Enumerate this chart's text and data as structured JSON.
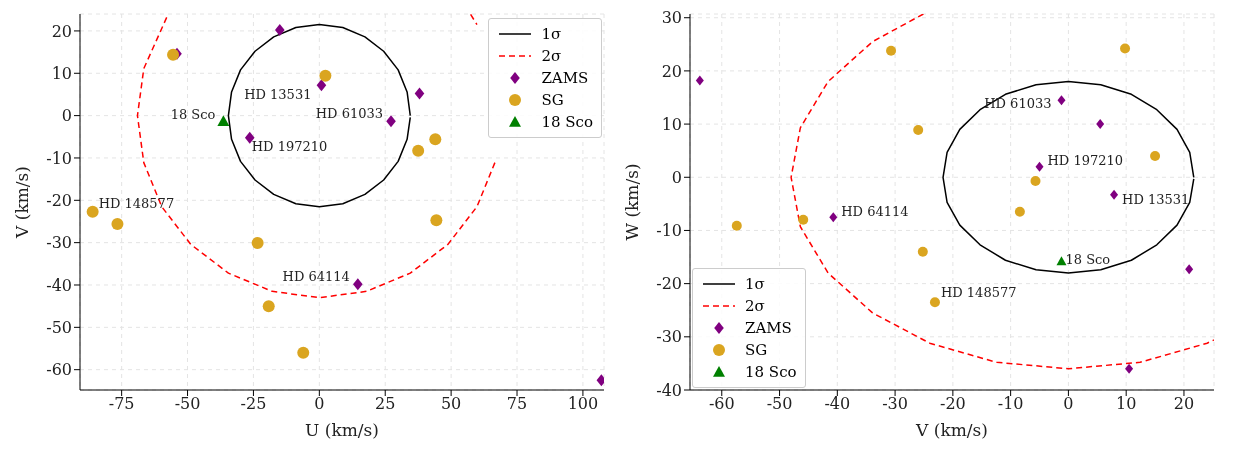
{
  "chart_data": [
    {
      "type": "scatter",
      "xlabel": "U (km/s)",
      "ylabel": "V (km/s)",
      "xlim": [
        -90.8,
        108
      ],
      "ylim": [
        -64.8,
        24
      ],
      "xticks": [
        -75,
        -50,
        -25,
        0,
        25,
        50,
        75,
        100
      ],
      "yticks": [
        -60,
        -50,
        -40,
        -30,
        -20,
        -10,
        0,
        10,
        20
      ],
      "grid": true,
      "legend": "top right",
      "series": [
        {
          "name": "1σ",
          "type": "line",
          "line_style": "solid",
          "marker": "none",
          "color": "#000000",
          "x": [
            34.5,
            33.3,
            29.9,
            24.4,
            17.3,
            8.9,
            0,
            -8.9,
            -17.3,
            -24.4,
            -29.9,
            -33.3,
            -34.5,
            -33.3,
            -29.9,
            -24.4,
            -17.3,
            -8.9,
            0,
            8.9,
            17.3,
            24.4,
            29.9,
            33.3,
            34.5
          ],
          "values": [
            0,
            5.6,
            10.8,
            15.2,
            18.6,
            20.8,
            21.5,
            20.8,
            18.6,
            15.2,
            10.8,
            5.6,
            0,
            -5.6,
            -10.8,
            -15.2,
            -18.6,
            -20.8,
            -21.5,
            -20.8,
            -18.6,
            -15.2,
            -10.8,
            -5.6,
            -0.4
          ]
        },
        {
          "name": "2σ",
          "type": "line",
          "line_style": "dashed",
          "marker": "none",
          "color": "#ff0000",
          "x": [
            57.4,
            59.8,
            null,
            null,
            66.6,
            59.8,
            48.8,
            34.5,
            17.9,
            0,
            -17.9,
            -34.5,
            -48.8,
            -59.8,
            -66.6,
            -69,
            -66.6,
            -57.4
          ],
          "values": [
            23.9,
            21.5,
            null,
            null,
            -11.1,
            -21.5,
            -30.4,
            -37.2,
            -41.5,
            -43,
            -41.5,
            -37.2,
            -30.4,
            -21.5,
            -11.1,
            0,
            11.1,
            23.9
          ]
        },
        {
          "name": "ZAMS",
          "marker": "diamond",
          "color": "#800080",
          "x": [
            -54,
            -15,
            0.8,
            38,
            27.2,
            -26.4,
            14.6,
            107
          ],
          "values": [
            14.6,
            20.2,
            7.2,
            5.2,
            -1.3,
            -5.2,
            -39.8,
            -62.5
          ]
        },
        {
          "name": "SG",
          "marker": "circle",
          "color": "#daa520",
          "x": [
            -55.5,
            2.3,
            44,
            37.5,
            -86,
            -76.6,
            44.4,
            -23.4,
            -19.2,
            -6.1
          ],
          "values": [
            14.4,
            9.4,
            -5.6,
            -8.3,
            -22.7,
            -25.6,
            -24.7,
            -30.1,
            -45,
            -56
          ]
        },
        {
          "name": "18 Sco",
          "marker": "triangle",
          "color": "#008000",
          "x": [
            -36.4
          ],
          "values": [
            -1.3
          ]
        }
      ],
      "annotations": [
        {
          "text": "HD 13531",
          "x": 0.8,
          "y": 7.2
        },
        {
          "text": "18 Sco",
          "x": -36.4,
          "y": -1.3
        },
        {
          "text": "HD 61033",
          "x": 27.2,
          "y": -1.3
        },
        {
          "text": "HD 197210",
          "x": -26.4,
          "y": -5.2
        },
        {
          "text": "HD 148577",
          "x": -86,
          "y": -22.7
        },
        {
          "text": "HD 64114",
          "x": 14.6,
          "y": -39.8
        }
      ]
    },
    {
      "type": "scatter",
      "xlabel": "V (km/s)",
      "ylabel": "W (km/s)",
      "xlim": [
        -65.5,
        25.2
      ],
      "ylim": [
        -40,
        30.7
      ],
      "xticks": [
        -60,
        -50,
        -40,
        -30,
        -20,
        -10,
        0,
        10,
        20
      ],
      "yticks": [
        -40,
        -30,
        -20,
        -10,
        0,
        10,
        20,
        30
      ],
      "grid": true,
      "legend": "bottom left",
      "series": [
        {
          "name": "1σ",
          "type": "line",
          "line_style": "solid",
          "marker": "none",
          "color": "#000000",
          "x": [
            21.7,
            21,
            18.8,
            15.3,
            10.9,
            5.6,
            0,
            -5.6,
            -10.9,
            -15.3,
            -18.8,
            -21,
            -21.7,
            -21,
            -18.8,
            -15.3,
            -10.9,
            -5.6,
            0,
            5.6,
            10.9,
            15.3,
            18.8,
            21,
            21.7
          ],
          "values": [
            0,
            4.7,
            9,
            12.7,
            15.6,
            17.4,
            18,
            17.4,
            15.6,
            12.7,
            9,
            4.7,
            0,
            -4.7,
            -9,
            -12.7,
            -15.6,
            -17.4,
            -18,
            -17.4,
            -15.6,
            -12.7,
            -9,
            -4.7,
            -0.3
          ]
        },
        {
          "name": "2σ",
          "type": "line",
          "line_style": "dashed",
          "marker": "none",
          "color": "#ff0000",
          "x": [
            -25.1,
            -33.9,
            -41.6,
            -46.4,
            -48,
            -46.4,
            -41.6,
            -33.9,
            -24,
            -12.4,
            0,
            12.4,
            24,
            25.2
          ],
          "values": [
            30.7,
            25.5,
            18,
            9.3,
            0,
            -9.3,
            -18,
            -25.5,
            -31.2,
            -34.8,
            -36,
            -34.8,
            -31.2,
            -30.6
          ]
        },
        {
          "name": "ZAMS",
          "marker": "diamond",
          "color": "#800080",
          "x": [
            -63.8,
            -1.2,
            5.5,
            -5,
            7.9,
            -40.7,
            20.9,
            10.5
          ],
          "values": [
            18.2,
            14.5,
            10,
            2,
            -3.3,
            -7.5,
            -17.3,
            -36
          ]
        },
        {
          "name": "SG",
          "marker": "circle",
          "color": "#daa520",
          "x": [
            -30.7,
            9.8,
            -26,
            15,
            -5.7,
            -8.4,
            -45.9,
            -57.4,
            -25.2,
            -23.1
          ],
          "values": [
            23.8,
            24.2,
            8.9,
            4,
            -0.7,
            -6.5,
            -8,
            -9.1,
            -14,
            -23.5
          ]
        },
        {
          "name": "18 Sco",
          "marker": "triangle",
          "color": "#008000",
          "x": [
            -1.2
          ],
          "values": [
            -15.8
          ]
        }
      ],
      "annotations": [
        {
          "text": "HD 61033",
          "x": -1.2,
          "y": 14.5
        },
        {
          "text": "HD 197210",
          "x": -5,
          "y": 2
        },
        {
          "text": "HD 13531",
          "x": 7.9,
          "y": -3.3
        },
        {
          "text": "HD 64114",
          "x": -40.7,
          "y": -7.5
        },
        {
          "text": "18 Sco",
          "x": -1.2,
          "y": -15.8
        },
        {
          "text": "HD 148577",
          "x": -23.1,
          "y": -23.5
        }
      ]
    }
  ]
}
